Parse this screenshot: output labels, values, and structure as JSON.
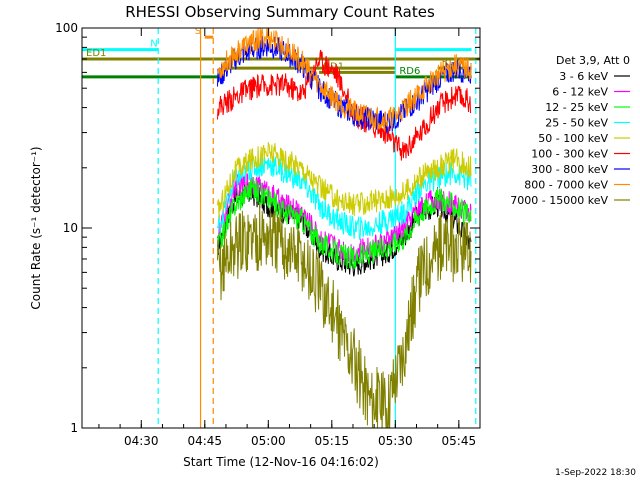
{
  "chart_data": {
    "type": "line",
    "title": "RHESSI Observing Summary Count Rates",
    "xlabel": "Start Time (12-Nov-16 04:16:02)",
    "ylabel": "Count Rate (s⁻¹ detector⁻¹)",
    "x_range_min": [
      16,
      110
    ],
    "y_range": [
      1,
      100
    ],
    "y_scale": "log",
    "x_ticks": [
      {
        "min": 30,
        "label": "04:30"
      },
      {
        "min": 45,
        "label": "04:45"
      },
      {
        "min": 60,
        "label": "05:00"
      },
      {
        "min": 75,
        "label": "05:15"
      },
      {
        "min": 90,
        "label": "05:30"
      },
      {
        "min": 105,
        "label": "05:45"
      }
    ],
    "y_ticks": [
      {
        "value": 1,
        "label": "1"
      },
      {
        "value": 10,
        "label": "10"
      },
      {
        "value": 100,
        "label": "100"
      }
    ],
    "legend_header": "Det 3,9, Att 0",
    "legend_position": "right",
    "series": [
      {
        "name": "3 - 6 keV",
        "color": "#000000",
        "points": [
          [
            48,
            8
          ],
          [
            52,
            14
          ],
          [
            56,
            15
          ],
          [
            60,
            13
          ],
          [
            64,
            12
          ],
          [
            68,
            11
          ],
          [
            72,
            8
          ],
          [
            76,
            7
          ],
          [
            80,
            6.5
          ],
          [
            84,
            7
          ],
          [
            88,
            7.5
          ],
          [
            92,
            9
          ],
          [
            96,
            12
          ],
          [
            100,
            13
          ],
          [
            104,
            11
          ],
          [
            108,
            8
          ]
        ]
      },
      {
        "name": "6 - 12 keV",
        "color": "#ff00ff",
        "points": [
          [
            48,
            9
          ],
          [
            52,
            16
          ],
          [
            56,
            17
          ],
          [
            60,
            15
          ],
          [
            64,
            13
          ],
          [
            68,
            12
          ],
          [
            72,
            9
          ],
          [
            76,
            8
          ],
          [
            80,
            7.5
          ],
          [
            84,
            8
          ],
          [
            88,
            8.5
          ],
          [
            92,
            10
          ],
          [
            96,
            13
          ],
          [
            100,
            14
          ],
          [
            104,
            13
          ],
          [
            108,
            12
          ]
        ]
      },
      {
        "name": "12 - 25 keV",
        "color": "#00ff00",
        "points": [
          [
            48,
            8
          ],
          [
            52,
            13
          ],
          [
            56,
            16
          ],
          [
            60,
            14
          ],
          [
            64,
            12
          ],
          [
            68,
            11
          ],
          [
            72,
            8.5
          ],
          [
            76,
            7.5
          ],
          [
            80,
            7
          ],
          [
            84,
            7.5
          ],
          [
            88,
            8
          ],
          [
            92,
            9
          ],
          [
            96,
            12
          ],
          [
            100,
            14
          ],
          [
            104,
            13
          ],
          [
            108,
            11
          ]
        ]
      },
      {
        "name": "25 - 50 keV",
        "color": "#00ffff",
        "points": [
          [
            48,
            10
          ],
          [
            52,
            17
          ],
          [
            56,
            20
          ],
          [
            60,
            21
          ],
          [
            64,
            19
          ],
          [
            68,
            17
          ],
          [
            72,
            13
          ],
          [
            76,
            11
          ],
          [
            80,
            10
          ],
          [
            84,
            10
          ],
          [
            88,
            11
          ],
          [
            92,
            12
          ],
          [
            96,
            16
          ],
          [
            100,
            18
          ],
          [
            104,
            19
          ],
          [
            108,
            17
          ]
        ]
      },
      {
        "name": "50 - 100 keV",
        "color": "#cccc00",
        "points": [
          [
            48,
            12
          ],
          [
            52,
            19
          ],
          [
            56,
            22
          ],
          [
            60,
            24
          ],
          [
            64,
            22
          ],
          [
            68,
            20
          ],
          [
            72,
            16
          ],
          [
            76,
            14
          ],
          [
            80,
            13
          ],
          [
            84,
            13.5
          ],
          [
            88,
            14
          ],
          [
            92,
            15
          ],
          [
            96,
            18
          ],
          [
            100,
            20
          ],
          [
            104,
            22
          ],
          [
            108,
            20
          ]
        ]
      },
      {
        "name": "100 - 300 keV",
        "color": "#ff0000",
        "points": [
          [
            48,
            40
          ],
          [
            52,
            45
          ],
          [
            56,
            50
          ],
          [
            60,
            52
          ],
          [
            64,
            52
          ],
          [
            68,
            47
          ],
          [
            72,
            70
          ],
          [
            76,
            60
          ],
          [
            80,
            38
          ],
          [
            84,
            33
          ],
          [
            88,
            30
          ],
          [
            90,
            26
          ],
          [
            92,
            24
          ],
          [
            96,
            30
          ],
          [
            100,
            40
          ],
          [
            104,
            46
          ],
          [
            108,
            43
          ]
        ]
      },
      {
        "name": "300 - 800 keV",
        "color": "#0000ff",
        "points": [
          [
            48,
            55
          ],
          [
            52,
            70
          ],
          [
            56,
            78
          ],
          [
            60,
            82
          ],
          [
            64,
            76
          ],
          [
            68,
            65
          ],
          [
            72,
            50
          ],
          [
            76,
            42
          ],
          [
            80,
            37
          ],
          [
            84,
            35
          ],
          [
            88,
            34
          ],
          [
            90,
            35
          ],
          [
            92,
            38
          ],
          [
            96,
            45
          ],
          [
            100,
            55
          ],
          [
            104,
            62
          ],
          [
            108,
            60
          ]
        ]
      },
      {
        "name": "800 - 7000 keV",
        "color": "#ff8c00",
        "points": [
          [
            48,
            60
          ],
          [
            52,
            75
          ],
          [
            56,
            85
          ],
          [
            60,
            90
          ],
          [
            64,
            80
          ],
          [
            68,
            68
          ],
          [
            72,
            52
          ],
          [
            76,
            44
          ],
          [
            80,
            38
          ],
          [
            84,
            36
          ],
          [
            88,
            35
          ],
          [
            90,
            36
          ],
          [
            92,
            40
          ],
          [
            96,
            48
          ],
          [
            100,
            58
          ],
          [
            104,
            65
          ],
          [
            108,
            62
          ]
        ]
      },
      {
        "name": "7000 - 15000 keV",
        "color": "#808000",
        "points": [
          [
            48,
            6
          ],
          [
            52,
            8
          ],
          [
            56,
            9
          ],
          [
            60,
            9
          ],
          [
            64,
            8
          ],
          [
            68,
            7
          ],
          [
            72,
            5
          ],
          [
            76,
            3.5
          ],
          [
            80,
            2.2
          ],
          [
            84,
            1.4
          ],
          [
            88,
            1.3
          ],
          [
            92,
            2.5
          ],
          [
            96,
            6
          ],
          [
            100,
            8
          ],
          [
            104,
            8
          ],
          [
            108,
            7
          ]
        ]
      }
    ],
    "flag_lines": [
      {
        "label": "N",
        "color": "#00ffff",
        "value": 78,
        "segments": [
          [
            16,
            34
          ],
          [
            90,
            108
          ]
        ]
      },
      {
        "label": "S",
        "color": "#ff8c00",
        "value": 90,
        "segments": [
          [
            45,
            47
          ]
        ]
      },
      {
        "label": "ED1",
        "color": "#808000",
        "value": 70,
        "segments": [
          [
            16,
            110
          ]
        ]
      },
      {
        "label": "RD0",
        "color": "#808000",
        "value": 63,
        "segments": [
          [
            50,
            90
          ],
          [
            100,
            108
          ]
        ]
      },
      {
        "label": "RD1",
        "color": "#808000",
        "value": 60,
        "segments": [
          [
            72,
            90
          ]
        ]
      },
      {
        "label": "RD6",
        "color": "#008000",
        "value": 57,
        "segments": [
          [
            16,
            48
          ],
          [
            90,
            108
          ]
        ]
      }
    ],
    "vertical_lines": [
      {
        "min": 34,
        "color": "#00ffff",
        "style": "dashed"
      },
      {
        "min": 44,
        "color": "#ff8c00",
        "style": "solid"
      },
      {
        "min": 47,
        "color": "#ff8c00",
        "style": "dashed"
      },
      {
        "min": 90,
        "color": "#00ffff",
        "style": "solid"
      },
      {
        "min": 109,
        "color": "#00ffff",
        "style": "dashed"
      }
    ]
  },
  "footer": {
    "date_stamp": "1-Sep-2022 18:30"
  }
}
